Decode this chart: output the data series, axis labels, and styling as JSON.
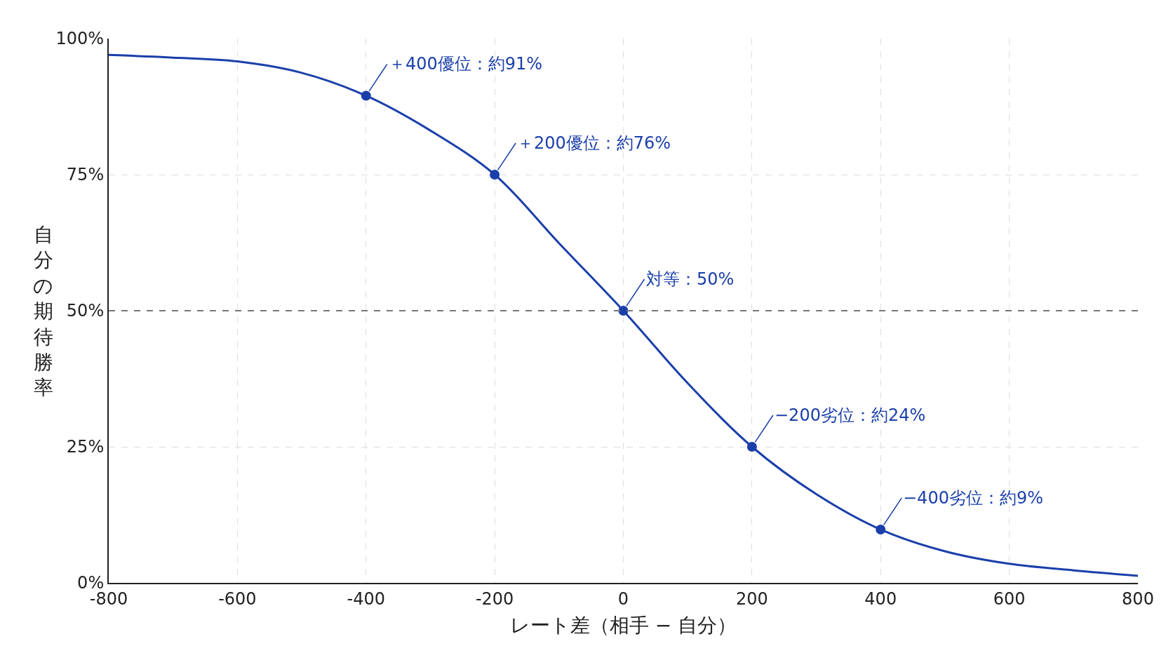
{
  "chart_data": {
    "type": "line",
    "xlabel": "レート差（相手 − 自分）",
    "ylabel": "自分の期待勝率",
    "x": [
      -800,
      -700,
      -600,
      -500,
      -400,
      -300,
      -200,
      -100,
      0,
      100,
      200,
      300,
      400,
      500,
      600,
      700,
      800
    ],
    "series": [
      {
        "color": "#1a3faa",
        "values": [
          97.0,
          96.5,
          95.8,
          93.7,
          89.5,
          83.1,
          75,
          62.4,
          50,
          36.7,
          25,
          16.3,
          9.8,
          5.8,
          3.5,
          2.3,
          1.3
        ]
      },
      {
        "type": "scatter",
        "marker": "circle",
        "color": "#1a3faa",
        "x": [
          -400,
          -200,
          0,
          200,
          400
        ],
        "values": [
          89.5,
          75,
          50,
          25,
          9.8
        ]
      }
    ],
    "xlim": [
      -800,
      800
    ],
    "xticks": [
      -800,
      -600,
      -400,
      -200,
      0,
      200,
      400,
      600,
      800
    ],
    "ylim": [
      0,
      100
    ],
    "yticks": [
      {
        "value": 0,
        "label": "0%"
      },
      {
        "value": 25,
        "label": "25%"
      },
      {
        "value": 50,
        "label": "50%"
      },
      {
        "value": 75,
        "label": "75%"
      },
      {
        "value": 100,
        "label": "100%"
      }
    ],
    "grid": true,
    "line_style": "solid",
    "ref_lines": [
      {
        "axis": "y",
        "value": 50,
        "color": "#777777",
        "line_style": "dashed"
      }
    ],
    "annotations": [
      {
        "text": "＋400優位：約91%",
        "x": -400,
        "y": 89.5
      },
      {
        "text": "＋200優位：約76%",
        "x": -200,
        "y": 75
      },
      {
        "text": "対等：50%",
        "x": 0,
        "y": 50
      },
      {
        "text": "−200劣位：約24%",
        "x": 200,
        "y": 25
      },
      {
        "text": "−400劣位：約9%",
        "x": 400,
        "y": 9.8
      }
    ]
  }
}
